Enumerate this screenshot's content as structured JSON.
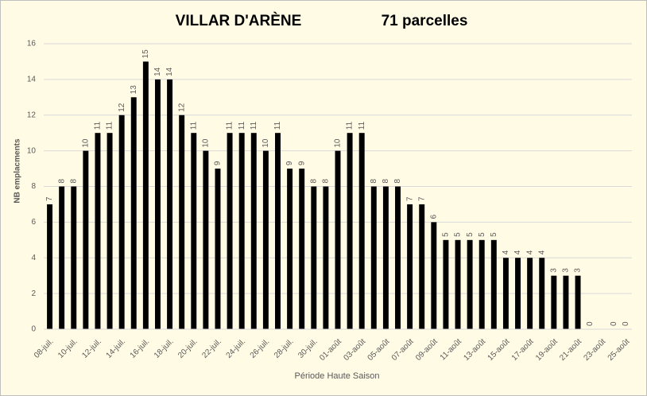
{
  "chart_data": {
    "type": "bar",
    "title": "VILLAR D'ARÈNE",
    "subtitle": "71 parcelles",
    "x_label": "Période Haute Saison",
    "y_label": "NB emplacments",
    "categories": [
      "08-juil.",
      null,
      "10-juil.",
      null,
      "12-juil.",
      null,
      "14-juil.",
      null,
      "16-juil.",
      null,
      "18-juil.",
      null,
      "20-juil.",
      null,
      "22-juil.",
      null,
      "24-juil.",
      null,
      "26-juil.",
      null,
      "28-juil.",
      null,
      "30-juil.",
      null,
      "01-août",
      null,
      "03-août",
      null,
      "05-août",
      null,
      "07-août",
      null,
      "09-août",
      null,
      "11-août",
      null,
      "13-août",
      null,
      "15-août",
      null,
      "17-août",
      null,
      "19-août",
      null,
      "21-août",
      null,
      "23-août",
      null,
      "25-août"
    ],
    "values": [
      7,
      8,
      8,
      10,
      11,
      11,
      12,
      13,
      15,
      14,
      14,
      12,
      11,
      10,
      9,
      11,
      11,
      11,
      10,
      11,
      9,
      9,
      8,
      8,
      10,
      11,
      11,
      8,
      8,
      8,
      7,
      7,
      6,
      5,
      5,
      5,
      5,
      5,
      4,
      4,
      4,
      4,
      3,
      3,
      3,
      0,
      null,
      0,
      0
    ],
    "color": "#000000",
    "ylim": [
      0,
      16
    ],
    "yticks": [
      0,
      2,
      4,
      6,
      8,
      10,
      12,
      14,
      16
    ],
    "grid": true
  }
}
